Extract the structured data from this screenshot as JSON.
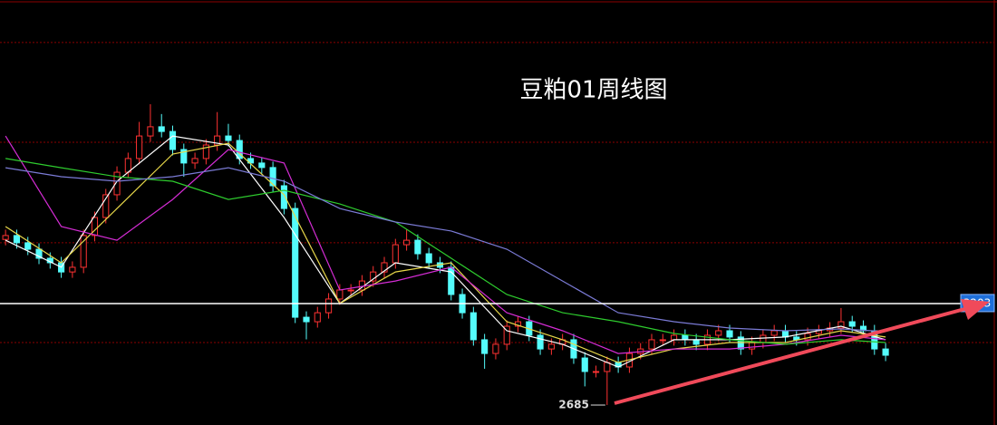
{
  "chart_data": {
    "type": "candlestick",
    "title": "豆粕01周线图",
    "xlim": [
      -0.5,
      89
    ],
    "ylim": [
      2583,
      4752
    ],
    "up_color": "#ff3232",
    "down_color": "#54fcfc",
    "grid_color": "#8b0000",
    "grid_levels": [
      4535,
      4026,
      3513,
      3004
    ],
    "open": [
      3530,
      3550,
      3513,
      3480,
      3434,
      3411,
      3364,
      3388,
      3550,
      3642,
      3758,
      3873,
      3943,
      4058,
      4105,
      4081,
      3989,
      3920,
      3943,
      4012,
      4058,
      4035,
      3943,
      3920,
      3897,
      3804,
      3688,
      3133,
      3110,
      3156,
      3226,
      3272,
      3272,
      3318,
      3364,
      3411,
      3503,
      3526,
      3457,
      3411,
      3388,
      3249,
      3156,
      3018,
      2948,
      2995,
      3087,
      3110,
      3041,
      2971,
      2995,
      3018,
      2925,
      2856,
      2856,
      2902,
      2879,
      2948,
      2971,
      3018,
      3018,
      3041,
      3018,
      2995,
      3041,
      3064,
      3032,
      2971,
      3004,
      3041,
      3064,
      3032,
      3018,
      3050,
      3064,
      3078,
      3110,
      3087,
      3064,
      2971
    ],
    "high": [
      3580,
      3580,
      3543,
      3510,
      3464,
      3441,
      3418,
      3580,
      3672,
      3788,
      3903,
      3973,
      4130,
      4220,
      4170,
      4111,
      4019,
      3973,
      4042,
      4180,
      4120,
      4065,
      3973,
      3950,
      3927,
      3834,
      3718,
      3163,
      3186,
      3256,
      3302,
      3302,
      3348,
      3394,
      3441,
      3533,
      3580,
      3556,
      3487,
      3441,
      3418,
      3279,
      3186,
      3048,
      3025,
      3117,
      3140,
      3140,
      3071,
      3025,
      3048,
      3048,
      2955,
      2886,
      2932,
      2932,
      2978,
      3001,
      3048,
      3048,
      3071,
      3071,
      3048,
      3071,
      3094,
      3094,
      3062,
      3034,
      3071,
      3094,
      3094,
      3062,
      3080,
      3094,
      3108,
      3180,
      3140,
      3117,
      3094,
      3001
    ],
    "low": [
      3500,
      3483,
      3450,
      3404,
      3381,
      3334,
      3334,
      3358,
      3520,
      3612,
      3728,
      3843,
      3913,
      4028,
      4051,
      3959,
      3850,
      3890,
      3913,
      3982,
      4005,
      3913,
      3890,
      3867,
      3774,
      3658,
      3103,
      3020,
      3080,
      3126,
      3196,
      3242,
      3242,
      3288,
      3334,
      3381,
      3473,
      3427,
      3381,
      3358,
      3219,
      3126,
      2988,
      2870,
      2918,
      2965,
      3057,
      3011,
      2941,
      2941,
      2965,
      2895,
      2780,
      2826,
      2685,
      2849,
      2849,
      2918,
      2941,
      2988,
      2988,
      2988,
      2965,
      2965,
      3011,
      3002,
      2941,
      2941,
      2974,
      3011,
      3002,
      2988,
      2988,
      3020,
      3034,
      3048,
      3057,
      3034,
      2941,
      2909
    ],
    "close": [
      3550,
      3513,
      3480,
      3434,
      3411,
      3364,
      3388,
      3550,
      3642,
      3758,
      3873,
      3943,
      4058,
      4105,
      4081,
      3989,
      3920,
      3943,
      4012,
      4058,
      4035,
      3943,
      3920,
      3897,
      3804,
      3688,
      3133,
      3110,
      3156,
      3226,
      3272,
      3272,
      3318,
      3364,
      3411,
      3503,
      3526,
      3457,
      3411,
      3388,
      3249,
      3156,
      3018,
      2948,
      2995,
      3087,
      3110,
      3041,
      2971,
      2995,
      3018,
      2925,
      2856,
      2856,
      2902,
      2879,
      2948,
      2971,
      3018,
      3018,
      3041,
      3018,
      2995,
      3041,
      3064,
      3032,
      2971,
      3004,
      3041,
      3064,
      3032,
      3018,
      3050,
      3064,
      3078,
      3110,
      3087,
      3064,
      2971,
      2939
    ],
    "lines": [
      {
        "color": "#ffffff",
        "x": [
          0,
          5,
          10,
          15,
          20,
          25,
          30,
          35,
          40,
          45,
          50,
          55,
          60,
          65,
          70,
          75,
          79
        ],
        "values": [
          3526,
          3388,
          3827,
          4058,
          4012,
          3642,
          3203,
          3411,
          3364,
          3064,
          2995,
          2879,
          3018,
          3018,
          3032,
          3087,
          3018
        ]
      },
      {
        "color": "#e8d84a",
        "x": [
          0,
          5,
          10,
          15,
          20,
          25,
          30,
          35,
          40,
          45,
          50,
          55,
          60,
          65,
          70,
          75,
          79
        ],
        "values": [
          3596,
          3411,
          3688,
          3966,
          4021,
          3758,
          3203,
          3364,
          3411,
          3110,
          3018,
          2902,
          2971,
          3004,
          3004,
          3064,
          3032
        ]
      },
      {
        "color": "#d42cd4",
        "x": [
          0,
          5,
          10,
          15,
          20,
          25,
          30,
          35,
          40,
          45,
          50,
          55,
          60,
          65,
          70,
          75,
          79
        ],
        "values": [
          4058,
          3596,
          3526,
          3734,
          3989,
          3920,
          3272,
          3318,
          3388,
          3156,
          3064,
          2948,
          2971,
          2971,
          2995,
          3041,
          3018
        ]
      },
      {
        "color": "#2ecc2e",
        "x": [
          0,
          5,
          10,
          15,
          20,
          25,
          30,
          35,
          40,
          45,
          50,
          55,
          60,
          65,
          70,
          75,
          79
        ],
        "values": [
          3943,
          3896,
          3850,
          3827,
          3734,
          3781,
          3711,
          3619,
          3434,
          3249,
          3156,
          3110,
          3050,
          3018,
          2995,
          3018,
          3004
        ]
      },
      {
        "color": "#7b7bd6",
        "x": [
          0,
          5,
          10,
          15,
          20,
          25,
          30,
          35,
          40,
          45,
          50,
          55,
          60,
          65,
          70,
          75,
          79
        ],
        "values": [
          3896,
          3850,
          3827,
          3850,
          3896,
          3827,
          3688,
          3619,
          3573,
          3480,
          3318,
          3156,
          3110,
          3078,
          3064,
          3073,
          3060
        ]
      }
    ],
    "level_line": 3203,
    "low_mark": {
      "value": 2685,
      "x": 54
    }
  }
}
